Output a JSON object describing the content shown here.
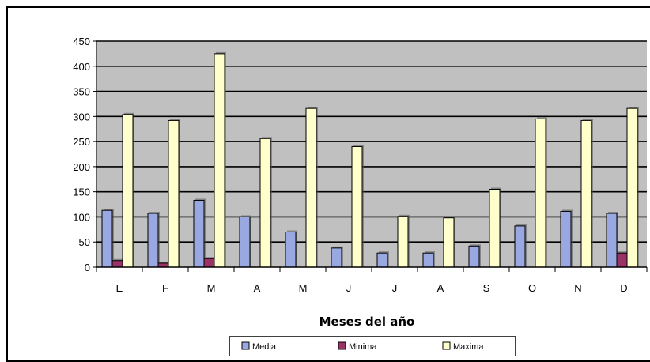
{
  "chart_data": {
    "type": "bar",
    "title": "",
    "xlabel": "Meses del año",
    "ylabel": "",
    "categories": [
      "E",
      "F",
      "M",
      "A",
      "M",
      "J",
      "J",
      "A",
      "S",
      "O",
      "N",
      "D"
    ],
    "ylim": [
      0,
      450
    ],
    "yticks": [
      0,
      50,
      100,
      150,
      200,
      250,
      300,
      350,
      400,
      450
    ],
    "grid": true,
    "legend_position": "bottom",
    "series": [
      {
        "name": "Media",
        "color": "#99a8e0",
        "values": [
          113,
          107,
          133,
          100,
          70,
          38,
          28,
          28,
          42,
          82,
          111,
          107
        ]
      },
      {
        "name": "Minima",
        "color": "#993366",
        "values": [
          13,
          8,
          17,
          0,
          0,
          0,
          0,
          0,
          0,
          0,
          0,
          28
        ]
      },
      {
        "name": "Maxima",
        "color": "#ffffcc",
        "values": [
          304,
          292,
          425,
          256,
          316,
          240,
          101,
          98,
          155,
          295,
          292,
          316
        ]
      }
    ],
    "plot_background": "#c0c0c0"
  }
}
